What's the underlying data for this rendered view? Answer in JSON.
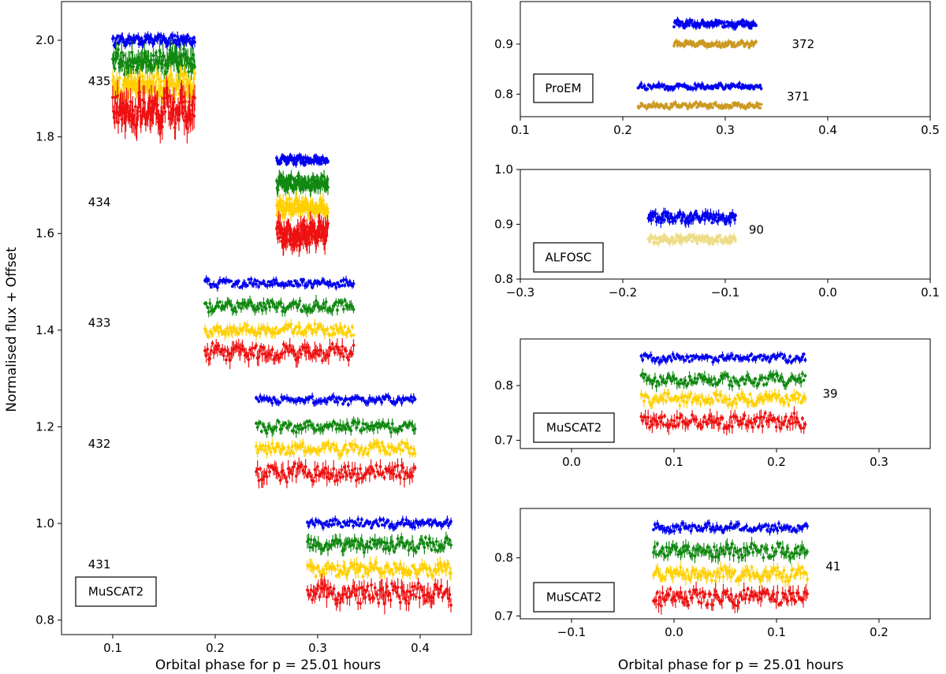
{
  "figure": {
    "shared_xlabel": "Orbital phase for p = 25.01 hours",
    "shared_ylabel": "Normalised flux + Offset"
  },
  "chart_data": [
    {
      "id": "main",
      "type": "scatter",
      "instrument": "MuSCAT2",
      "xlabel": "Orbital phase for p = 25.01 hours",
      "ylabel": "Normalised flux + Offset",
      "xlim": [
        0.05,
        0.45
      ],
      "ylim": [
        0.77,
        2.08
      ],
      "xticks": [
        0.1,
        0.2,
        0.3,
        0.4
      ],
      "yticks": [
        0.8,
        1.0,
        1.2,
        1.4,
        1.6,
        1.8,
        2.0
      ],
      "band_colors": [
        "#0000ee",
        "#118811",
        "#ffd000",
        "#ee1111"
      ],
      "nights": [
        {
          "label": "431",
          "label_x": 0.076,
          "label_y": 0.915,
          "x_range": [
            0.29,
            0.43
          ],
          "levels": [
            1.0,
            0.955,
            0.905,
            0.855
          ],
          "noise": [
            0.007,
            0.012,
            0.012,
            0.018
          ]
        },
        {
          "label": "432",
          "label_x": 0.076,
          "label_y": 1.165,
          "x_range": [
            0.24,
            0.395
          ],
          "levels": [
            1.255,
            1.2,
            1.155,
            1.105
          ],
          "noise": [
            0.007,
            0.01,
            0.01,
            0.015
          ]
        },
        {
          "label": "433",
          "label_x": 0.076,
          "label_y": 1.415,
          "x_range": [
            0.19,
            0.335
          ],
          "levels": [
            1.497,
            1.45,
            1.4,
            1.355
          ],
          "noise": [
            0.007,
            0.01,
            0.01,
            0.015
          ]
        },
        {
          "label": "434",
          "label_x": 0.076,
          "label_y": 1.665,
          "x_range": [
            0.26,
            0.31
          ],
          "levels": [
            1.752,
            1.705,
            1.655,
            1.6
          ],
          "noise": [
            0.007,
            0.013,
            0.014,
            0.02
          ]
        },
        {
          "label": "435",
          "label_x": 0.076,
          "label_y": 1.915,
          "x_range": [
            0.1,
            0.18
          ],
          "levels": [
            2.0,
            1.955,
            1.905,
            1.855
          ],
          "noise": [
            0.009,
            0.02,
            0.02,
            0.03
          ]
        }
      ]
    },
    {
      "id": "proem",
      "type": "scatter",
      "instrument": "ProEM",
      "xlim": [
        0.1,
        0.5
      ],
      "ylim": [
        0.755,
        0.985
      ],
      "xticks": [
        0.1,
        0.2,
        0.3,
        0.4,
        0.5
      ],
      "yticks": [
        0.8,
        0.9
      ],
      "band_colors": [
        "#0000ee",
        "#cc9922"
      ],
      "nights": [
        {
          "label": "372",
          "label_x": 0.365,
          "label_y": 0.9,
          "x_range": [
            0.25,
            0.33
          ],
          "levels": [
            0.94,
            0.9
          ],
          "noise": [
            0.006,
            0.005
          ]
        },
        {
          "label": "371",
          "label_x": 0.36,
          "label_y": 0.795,
          "x_range": [
            0.215,
            0.335
          ],
          "levels": [
            0.815,
            0.777
          ],
          "noise": [
            0.005,
            0.005
          ]
        }
      ]
    },
    {
      "id": "alfosc",
      "type": "scatter",
      "instrument": "ALFOSC",
      "xlim": [
        -0.3,
        0.1
      ],
      "ylim": [
        0.8,
        1.0
      ],
      "xticks": [
        -0.3,
        -0.2,
        -0.1,
        0.0,
        0.1
      ],
      "yticks": [
        0.8,
        0.9,
        1.0
      ],
      "band_colors": [
        "#0000ee",
        "#eedd88"
      ],
      "nights": [
        {
          "label": "90",
          "label_x": -0.077,
          "label_y": 0.89,
          "x_range": [
            -0.175,
            -0.09
          ],
          "levels": [
            0.912,
            0.872
          ],
          "noise": [
            0.008,
            0.006
          ]
        }
      ]
    },
    {
      "id": "muscat_39",
      "type": "scatter",
      "instrument": "MuSCAT2",
      "xlim": [
        -0.05,
        0.35
      ],
      "ylim": [
        0.685,
        0.885
      ],
      "xticks": [
        0.0,
        0.1,
        0.2,
        0.3
      ],
      "yticks": [
        0.7,
        0.8
      ],
      "band_colors": [
        "#0000ee",
        "#118811",
        "#ffd000",
        "#ee1111"
      ],
      "nights": [
        {
          "label": "39",
          "label_x": 0.245,
          "label_y": 0.785,
          "x_range": [
            0.068,
            0.228
          ],
          "levels": [
            0.85,
            0.81,
            0.775,
            0.735
          ],
          "noise": [
            0.006,
            0.009,
            0.009,
            0.012
          ]
        }
      ]
    },
    {
      "id": "muscat_41",
      "type": "scatter",
      "instrument": "MuSCAT2",
      "xlim": [
        -0.15,
        0.25
      ],
      "ylim": [
        0.695,
        0.885
      ],
      "xticks": [
        -0.1,
        0.0,
        0.1,
        0.2
      ],
      "yticks": [
        0.7,
        0.8
      ],
      "band_colors": [
        "#0000ee",
        "#118811",
        "#ffd000",
        "#ee1111"
      ],
      "nights": [
        {
          "label": "41",
          "label_x": 0.148,
          "label_y": 0.785,
          "x_range": [
            -0.02,
            0.13
          ],
          "levels": [
            0.852,
            0.812,
            0.772,
            0.732
          ],
          "noise": [
            0.006,
            0.01,
            0.01,
            0.012
          ]
        }
      ]
    }
  ]
}
